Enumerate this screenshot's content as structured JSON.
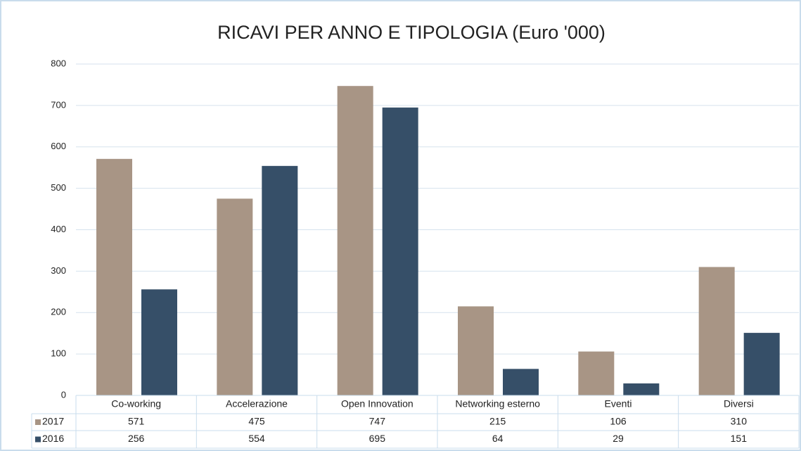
{
  "chart_data": {
    "type": "bar",
    "title": "RICAVI PER ANNO E TIPOLOGIA (Euro '000)",
    "categories": [
      "Co-working",
      "Accelerazione",
      "Open Innovation",
      "Networking esterno",
      "Eventi",
      "Diversi"
    ],
    "series": [
      {
        "name": "2017",
        "color": "#a89585",
        "values": [
          571,
          475,
          747,
          215,
          106,
          310
        ]
      },
      {
        "name": "2016",
        "color": "#364f68",
        "values": [
          256,
          554,
          695,
          64,
          29,
          151
        ]
      }
    ],
    "ylim": [
      0,
      800
    ],
    "yticks": [
      0,
      100,
      200,
      300,
      400,
      500,
      600,
      700,
      800
    ],
    "grid": true,
    "data_table": true
  }
}
